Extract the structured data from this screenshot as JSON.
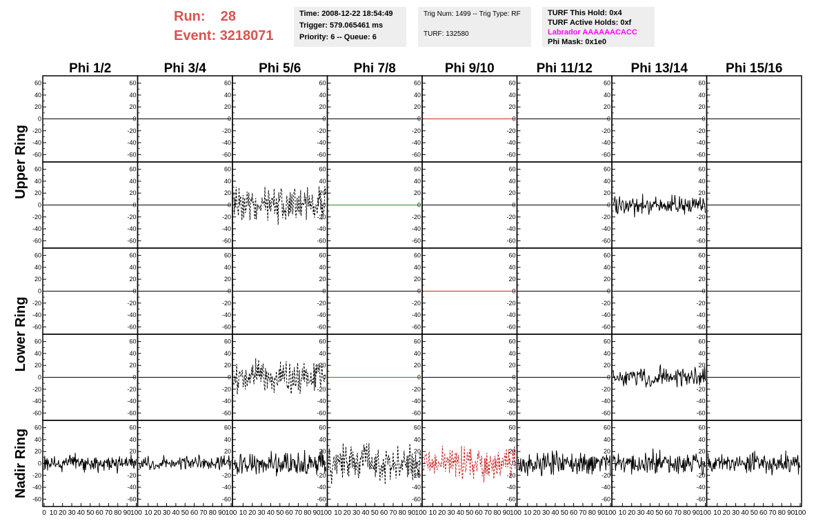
{
  "header": {
    "run_label": "Run:",
    "run_value": "28",
    "event_label": "Event:",
    "event_value": "3218071"
  },
  "info_trigger": {
    "time": "Time: 2008-12-22 18:54:49",
    "trigger": "Trigger: 579.065461 ms",
    "priority": "Priority: 6 -- Queue: 6"
  },
  "info_trig_num": {
    "trig": "Trig Num: 1499 -- Trig Type: RF",
    "turf": "TURF: 132580"
  },
  "info_turf": {
    "this_hold": "TURF This Hold: 0x4",
    "active_holds": "TURF Active Holds: 0xf",
    "labrador": "Labrador AAAAAACACC",
    "phi_mask": "Phi Mask: 0x1e0"
  },
  "colors": {
    "header_red": "#d9534f",
    "labrador_magenta": "#ff00ff",
    "trace_black": "#000000",
    "trace_red": "#cc2222",
    "trace_green": "#228b22",
    "info_bg": "#eeeeee"
  },
  "chart_data": {
    "type": "line",
    "columns": [
      "Phi 1/2",
      "Phi 3/4",
      "Phi 5/6",
      "Phi 7/8",
      "Phi 9/10",
      "Phi 11/12",
      "Phi 13/14",
      "Phi 15/16"
    ],
    "ring_labels": [
      "Upper Ring",
      "Lower Ring",
      "Nadir Ring"
    ],
    "ylim": [
      -70,
      70
    ],
    "yticks": [
      60,
      40,
      20,
      0,
      -20,
      -40,
      -60
    ],
    "xlim": [
      0,
      100
    ],
    "xticks": [
      "0",
      "10",
      "20",
      "30",
      "40",
      "50",
      "60",
      "70",
      "80",
      "90",
      "100"
    ],
    "rows": [
      {
        "ring": "Upper Ring",
        "panels": [
          {
            "kind": "flat",
            "color": "#000000"
          },
          {
            "kind": "flat",
            "color": "#000000"
          },
          {
            "kind": "flat",
            "color": "#000000"
          },
          {
            "kind": "flat",
            "color": "#000000"
          },
          {
            "kind": "flat",
            "color": "#cc2222"
          },
          {
            "kind": "flat",
            "color": "#000000"
          },
          {
            "kind": "flat",
            "color": "#000000"
          },
          {
            "kind": "flat",
            "color": "#000000"
          }
        ]
      },
      {
        "ring": "Upper Ring",
        "panels": [
          {
            "kind": "flat",
            "color": "#000000"
          },
          {
            "kind": "flat",
            "color": "#000000"
          },
          {
            "kind": "noise",
            "amp": 42,
            "dashed": true,
            "color": "#000000"
          },
          {
            "kind": "flat",
            "color": "#228b22"
          },
          {
            "kind": "flat",
            "color": "#000000"
          },
          {
            "kind": "flat",
            "color": "#000000"
          },
          {
            "kind": "noise",
            "amp": 24,
            "dashed": false,
            "color": "#000000"
          },
          {
            "kind": "flat",
            "color": "#000000"
          }
        ]
      },
      {
        "ring": "Lower Ring",
        "panels": [
          {
            "kind": "flat",
            "color": "#000000"
          },
          {
            "kind": "flat",
            "color": "#000000"
          },
          {
            "kind": "flat",
            "color": "#000000"
          },
          {
            "kind": "flat",
            "color": "#000000"
          },
          {
            "kind": "flat",
            "color": "#cc2222"
          },
          {
            "kind": "flat",
            "color": "#000000"
          },
          {
            "kind": "flat",
            "color": "#000000"
          },
          {
            "kind": "flat",
            "color": "#000000"
          }
        ]
      },
      {
        "ring": "Lower Ring",
        "panels": [
          {
            "kind": "flat",
            "color": "#000000"
          },
          {
            "kind": "flat",
            "color": "#000000"
          },
          {
            "kind": "noise",
            "amp": 40,
            "dashed": true,
            "color": "#000000"
          },
          {
            "kind": "flat",
            "color": "#228b22"
          },
          {
            "kind": "flat",
            "color": "#000000"
          },
          {
            "kind": "flat",
            "color": "#000000"
          },
          {
            "kind": "noise",
            "amp": 24,
            "dashed": false,
            "color": "#000000"
          },
          {
            "kind": "flat",
            "color": "#000000"
          }
        ]
      },
      {
        "ring": "Nadir Ring",
        "panels": [
          {
            "kind": "noise",
            "amp": 20,
            "dashed": false,
            "color": "#000000"
          },
          {
            "kind": "noise",
            "amp": 18,
            "dashed": false,
            "color": "#000000"
          },
          {
            "kind": "noise",
            "amp": 28,
            "dashed": false,
            "color": "#000000"
          },
          {
            "kind": "noise",
            "amp": 45,
            "dashed": true,
            "color": "#000000"
          },
          {
            "kind": "noise",
            "amp": 40,
            "dashed": true,
            "color": "#cc2222"
          },
          {
            "kind": "noise",
            "amp": 30,
            "dashed": false,
            "color": "#000000"
          },
          {
            "kind": "noise",
            "amp": 28,
            "dashed": false,
            "color": "#000000"
          },
          {
            "kind": "noise",
            "amp": 26,
            "dashed": false,
            "color": "#000000"
          }
        ]
      }
    ]
  }
}
